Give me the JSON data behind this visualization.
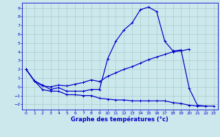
{
  "xlabel": "Graphe des températures (°c)",
  "bg_color": "#cce8ec",
  "grid_color": "#aacccc",
  "line_color": "#0000cc",
  "x_ticks": [
    0,
    1,
    2,
    3,
    4,
    5,
    6,
    7,
    8,
    9,
    10,
    11,
    12,
    13,
    14,
    15,
    16,
    17,
    18,
    19,
    20,
    21,
    22,
    23
  ],
  "y_ticks": [
    -2,
    -1,
    0,
    1,
    2,
    3,
    4,
    5,
    6,
    7,
    8,
    9
  ],
  "ylim": [
    -2.6,
    9.6
  ],
  "xlim": [
    -0.5,
    23.5
  ],
  "line1_x": [
    0,
    1,
    2,
    3,
    4,
    5,
    6,
    7,
    8,
    9,
    10,
    11,
    12,
    13,
    14,
    15,
    16,
    17,
    18,
    19,
    20,
    21,
    22
  ],
  "line1_y": [
    2.0,
    0.7,
    0.2,
    -0.3,
    -0.1,
    -0.5,
    -0.5,
    -0.5,
    -0.3,
    -0.3,
    3.2,
    5.2,
    6.5,
    7.3,
    8.8,
    9.1,
    8.6,
    5.2,
    4.1,
    4.2,
    -0.2,
    -2.1,
    -2.2
  ],
  "line2_x": [
    0,
    1,
    2,
    3,
    4,
    5,
    6,
    7,
    8,
    9,
    10,
    11,
    12,
    13,
    14,
    15,
    16,
    17,
    18,
    19,
    20
  ],
  "line2_y": [
    2.0,
    0.7,
    0.1,
    0.0,
    0.2,
    0.1,
    0.3,
    0.5,
    0.8,
    0.6,
    1.2,
    1.6,
    2.0,
    2.3,
    2.7,
    3.1,
    3.4,
    3.7,
    4.0,
    4.1,
    4.3
  ],
  "line3_x": [
    0,
    1,
    2,
    3,
    4,
    5,
    6,
    7,
    8,
    9,
    10,
    11,
    12,
    13,
    14,
    15,
    16,
    17,
    18,
    19,
    20,
    21,
    22,
    23
  ],
  "line3_y": [
    2.0,
    0.7,
    -0.3,
    -0.5,
    -0.5,
    -0.9,
    -0.9,
    -1.0,
    -1.0,
    -1.3,
    -1.4,
    -1.5,
    -1.5,
    -1.6,
    -1.6,
    -1.6,
    -1.6,
    -1.6,
    -1.8,
    -1.9,
    -2.1,
    -2.2,
    -2.2,
    -2.2
  ]
}
